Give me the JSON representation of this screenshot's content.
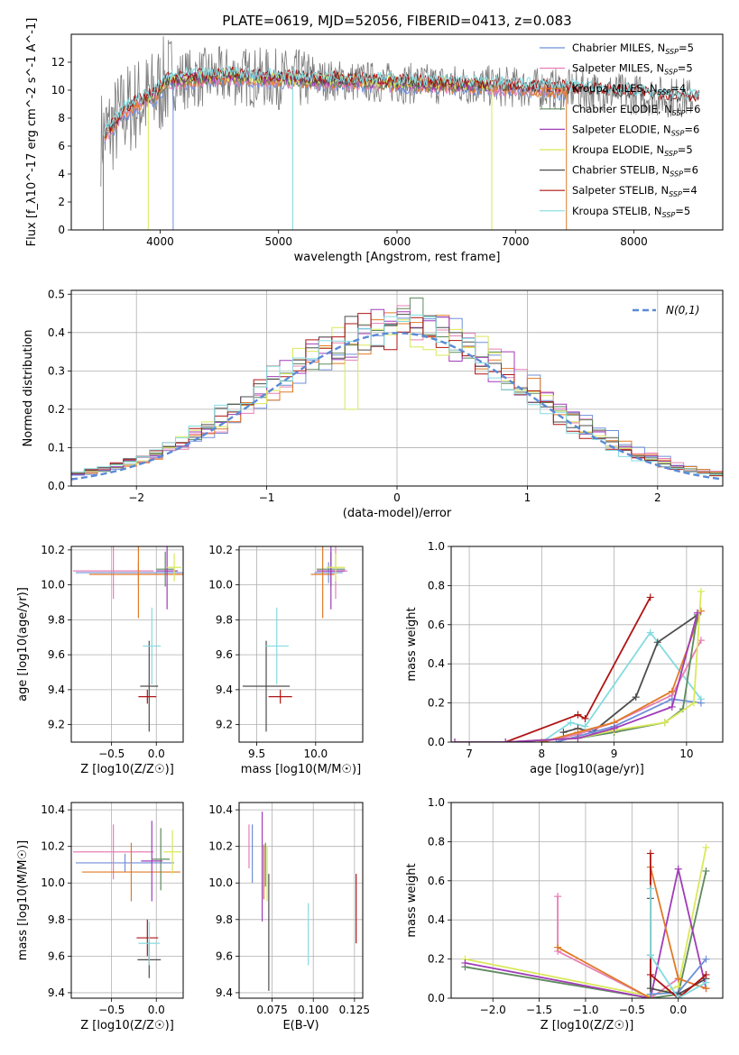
{
  "figure": {
    "title": "PLATE=0619, MJD=52056, FIBERID=0413, z=0.083"
  },
  "colors": {
    "Chabrier MILES": "#6f8fd8",
    "Salpeter MILES": "#e77fb4",
    "Kroupa MILES": "#e07a26",
    "Chabrier ELODIE": "#5e8a5e",
    "Salpeter ELODIE": "#a03cb8",
    "Kroupa ELODIE": "#d9e85a",
    "Chabrier STELIB": "#4d4d4d",
    "Salpeter STELIB": "#b01414",
    "Kroupa STELIB": "#84dbe0",
    "data": "#7a7a7a",
    "normal": "#5b8ad6"
  },
  "chart_data": [
    {
      "id": "spectrum",
      "type": "line",
      "xlabel": "wavelength [Angstrom, rest frame]",
      "ylabel": "Flux [f_λ10^-17 erg cm^-2 s^-1 A^-1]",
      "xlim": [
        3250,
        8750
      ],
      "ylim": [
        0,
        14
      ],
      "xticks": [
        4000,
        5000,
        6000,
        7000,
        8000
      ],
      "yticks": [
        0,
        2,
        4,
        6,
        8,
        10,
        12
      ],
      "legend": {
        "placement": "right",
        "entries": [
          {
            "model": "Chabrier MILES",
            "label": "Chabrier MILES, N",
            "sub": "SSP",
            "suffix": "=5"
          },
          {
            "model": "Salpeter MILES",
            "label": "Salpeter MILES, N",
            "sub": "SSP",
            "suffix": "=5"
          },
          {
            "model": "Kroupa MILES",
            "label": "Kroupa MILES, N",
            "sub": "SSP",
            "suffix": "=4"
          },
          {
            "model": "Chabrier ELODIE",
            "label": "Chabrier ELODIE, N",
            "sub": "SSP",
            "suffix": "=6"
          },
          {
            "model": "Salpeter ELODIE",
            "label": "Salpeter ELODIE, N",
            "sub": "SSP",
            "suffix": "=6"
          },
          {
            "model": "Kroupa ELODIE",
            "label": "Kroupa ELODIE, N",
            "sub": "SSP",
            "suffix": "=5"
          },
          {
            "model": "Chabrier STELIB",
            "label": "Chabrier STELIB, N",
            "sub": "SSP",
            "suffix": "=6"
          },
          {
            "model": "Salpeter STELIB",
            "label": "Salpeter STELIB, N",
            "sub": "SSP",
            "suffix": "=4"
          },
          {
            "model": "Kroupa STELIB",
            "label": "Kroupa STELIB, N",
            "sub": "SSP",
            "suffix": "=5"
          }
        ]
      },
      "continuum": [
        [
          3500,
          6.6
        ],
        [
          3600,
          7.4
        ],
        [
          3700,
          8.5
        ],
        [
          3800,
          9.0
        ],
        [
          3950,
          9.6
        ],
        [
          4050,
          10.6
        ],
        [
          4200,
          10.8
        ],
        [
          4400,
          10.9
        ],
        [
          4600,
          11.0
        ],
        [
          5000,
          10.8
        ],
        [
          5500,
          10.7
        ],
        [
          6000,
          10.5
        ],
        [
          6500,
          10.4
        ],
        [
          7000,
          10.2
        ],
        [
          7500,
          10.0
        ],
        [
          8000,
          9.7
        ],
        [
          8500,
          9.4
        ]
      ],
      "data_range": [
        3500,
        8500
      ],
      "model_ranges": {
        "MILES": [
          3530,
          7430
        ],
        "ELODIE": [
          3900,
          6800
        ],
        "STELIB": [
          3530,
          8550
        ]
      },
      "dropouts": [
        3520,
        3900,
        4110,
        5120,
        6800,
        7430
      ]
    },
    {
      "id": "residuals",
      "type": "histogram",
      "xlabel": "(data-model)/error",
      "ylabel": "Normed distribution",
      "xlim": [
        -2.5,
        2.5
      ],
      "ylim": [
        0,
        0.51
      ],
      "xticks": [
        -2,
        -1,
        0,
        1,
        2
      ],
      "yticks": [
        0.0,
        0.1,
        0.2,
        0.3,
        0.4,
        0.5
      ],
      "bin_width": 0.1,
      "legend": {
        "placement": "top-right",
        "label": "N(0,1)"
      },
      "outliers": [
        {
          "model": "Salpeter ELODIE",
          "x": 0.35,
          "y": 0.44
        },
        {
          "model": "Kroupa ELODIE",
          "x": -0.55,
          "y": 0.36
        },
        {
          "model": "Kroupa ELODIE",
          "x": -0.35,
          "y": 0.2
        },
        {
          "model": "Chabrier ELODIE",
          "x": 0.15,
          "y": 0.49
        },
        {
          "model": "Salpeter MILES",
          "x": 0.05,
          "y": 0.47
        },
        {
          "model": "Kroupa ELODIE",
          "x": 0.65,
          "y": 0.39
        },
        {
          "model": "Chabrier ELODIE",
          "x": -0.25,
          "y": 0.42
        },
        {
          "model": "Salpeter ELODIE",
          "x": 0.85,
          "y": 0.35
        }
      ]
    },
    {
      "id": "age_vs_Z",
      "type": "scatter",
      "xlabel": "Z [log10(Z/Z☉)]",
      "ylabel": "age [log10(age/yr)]",
      "xlim": [
        -0.95,
        0.3
      ],
      "ylim": [
        9.1,
        10.22
      ],
      "xticks": [
        -0.5,
        0.0
      ],
      "yticks": [
        9.2,
        9.4,
        9.6,
        9.8,
        10.0,
        10.2
      ],
      "points": [
        {
          "model": "Chabrier MILES",
          "x": -0.2,
          "y": 10.07,
          "xerr": 0.7,
          "yerr": 0.06
        },
        {
          "model": "Salpeter MILES",
          "x": -0.48,
          "y": 10.08,
          "xerr": 0.45,
          "yerr": 0.16
        },
        {
          "model": "Kroupa MILES",
          "x": -0.2,
          "y": 10.06,
          "xerr": 0.55,
          "yerr": 0.25
        },
        {
          "model": "Chabrier ELODIE",
          "x": 0.1,
          "y": 10.09,
          "xerr": 0.1,
          "yerr": 0.1
        },
        {
          "model": "Salpeter ELODIE",
          "x": 0.12,
          "y": 10.08,
          "xerr": 0.12,
          "yerr": 0.22
        },
        {
          "model": "Kroupa ELODIE",
          "x": 0.2,
          "y": 10.1,
          "xerr": 0.08,
          "yerr": 0.08
        },
        {
          "model": "Chabrier STELIB",
          "x": -0.08,
          "y": 9.42,
          "xerr": 0.1,
          "yerr": 0.26
        },
        {
          "model": "Salpeter STELIB",
          "x": -0.1,
          "y": 9.36,
          "xerr": 0.1,
          "yerr": 0.04
        },
        {
          "model": "Kroupa STELIB",
          "x": -0.05,
          "y": 9.65,
          "xerr": 0.1,
          "yerr": 0.22
        }
      ]
    },
    {
      "id": "age_vs_mass",
      "type": "scatter",
      "xlabel": "mass [log10(M/M☉)]",
      "ylabel": "",
      "xlim": [
        9.35,
        10.4
      ],
      "ylim": [
        9.1,
        10.22
      ],
      "xticks": [
        9.5,
        10.0
      ],
      "yticks": [
        9.2,
        9.4,
        9.6,
        9.8,
        10.0,
        10.2
      ],
      "points": [
        {
          "model": "Chabrier MILES",
          "x": 10.11,
          "y": 10.07,
          "xerr": 0.12,
          "yerr": 0.06
        },
        {
          "model": "Salpeter MILES",
          "x": 10.17,
          "y": 10.08,
          "xerr": 0.1,
          "yerr": 0.16
        },
        {
          "model": "Kroupa MILES",
          "x": 10.06,
          "y": 10.06,
          "xerr": 0.1,
          "yerr": 0.25
        },
        {
          "model": "Chabrier ELODIE",
          "x": 10.13,
          "y": 10.09,
          "xerr": 0.12,
          "yerr": 0.1
        },
        {
          "model": "Salpeter ELODIE",
          "x": 10.13,
          "y": 10.08,
          "xerr": 0.12,
          "yerr": 0.22
        },
        {
          "model": "Kroupa ELODIE",
          "x": 10.17,
          "y": 10.1,
          "xerr": 0.08,
          "yerr": 0.08
        },
        {
          "model": "Chabrier STELIB",
          "x": 9.58,
          "y": 9.42,
          "xerr": 0.2,
          "yerr": 0.26
        },
        {
          "model": "Salpeter STELIB",
          "x": 9.7,
          "y": 9.36,
          "xerr": 0.1,
          "yerr": 0.04
        },
        {
          "model": "Kroupa STELIB",
          "x": 9.67,
          "y": 9.65,
          "xerr": 0.1,
          "yerr": 0.22
        }
      ]
    },
    {
      "id": "weight_vs_age",
      "type": "line",
      "xlabel": "age [log10(age/yr)]",
      "ylabel": "mass weight",
      "xlim": [
        6.75,
        10.5
      ],
      "ylim": [
        0,
        1.0
      ],
      "xticks": [
        7,
        8,
        9,
        10
      ],
      "yticks": [
        0.0,
        0.2,
        0.4,
        0.6,
        0.8,
        1.0
      ],
      "series": [
        {
          "model": "Salpeter STELIB",
          "x": [
            7.5,
            8.5,
            8.6,
            9.5
          ],
          "y": [
            0.0,
            0.14,
            0.12,
            0.74
          ]
        },
        {
          "model": "Kroupa STELIB",
          "x": [
            8.0,
            8.4,
            8.6,
            9.5,
            10.2
          ],
          "y": [
            0.0,
            0.1,
            0.08,
            0.56,
            0.22
          ]
        },
        {
          "model": "Chabrier STELIB",
          "x": [
            8.3,
            8.5,
            8.7,
            9.3,
            9.6,
            10.15
          ],
          "y": [
            0.05,
            0.07,
            0.05,
            0.23,
            0.51,
            0.65
          ]
        },
        {
          "model": "Salpeter MILES",
          "x": [
            8.0,
            8.5,
            9.0,
            9.8,
            10.2
          ],
          "y": [
            0.0,
            0.04,
            0.1,
            0.24,
            0.52
          ]
        },
        {
          "model": "Kroupa MILES",
          "x": [
            8.0,
            8.5,
            9.0,
            9.8,
            10.2
          ],
          "y": [
            0.0,
            0.05,
            0.1,
            0.26,
            0.67
          ]
        },
        {
          "model": "Chabrier MILES",
          "x": [
            8.2,
            8.7,
            9.0,
            9.8,
            10.2
          ],
          "y": [
            0.0,
            0.05,
            0.08,
            0.22,
            0.2
          ]
        },
        {
          "model": "Chabrier ELODIE",
          "x": [
            6.8,
            7.5,
            8.5,
            9.0,
            9.7,
            9.95,
            10.15
          ],
          "y": [
            0.0,
            0.0,
            0.02,
            0.05,
            0.1,
            0.17,
            0.65
          ]
        },
        {
          "model": "Kroupa ELODIE",
          "x": [
            6.8,
            7.5,
            8.5,
            9.0,
            9.7,
            10.1,
            10.2
          ],
          "y": [
            0.0,
            0.0,
            0.02,
            0.06,
            0.1,
            0.2,
            0.77
          ]
        },
        {
          "model": "Salpeter ELODIE",
          "x": [
            6.8,
            7.5,
            8.5,
            9.0,
            9.8,
            10.15
          ],
          "y": [
            0.0,
            0.0,
            0.02,
            0.07,
            0.18,
            0.66
          ]
        }
      ]
    },
    {
      "id": "mass_vs_Z",
      "type": "scatter",
      "xlabel": "Z [log10(Z/Z☉)]",
      "ylabel": "mass [log10(M/M☉)]",
      "xlim": [
        -0.95,
        0.3
      ],
      "ylim": [
        9.37,
        10.44
      ],
      "xticks": [
        -0.5,
        0.0
      ],
      "yticks": [
        9.4,
        9.6,
        9.8,
        10.0,
        10.2,
        10.4
      ],
      "points": [
        {
          "model": "Chabrier MILES",
          "x": -0.35,
          "y": 10.11,
          "xerr": 0.55,
          "yerr": 0.05
        },
        {
          "model": "Salpeter MILES",
          "x": -0.48,
          "y": 10.17,
          "xerr": 0.45,
          "yerr": 0.15
        },
        {
          "model": "Kroupa MILES",
          "x": -0.28,
          "y": 10.06,
          "xerr": 0.55,
          "yerr": 0.16
        },
        {
          "model": "Chabrier ELODIE",
          "x": 0.05,
          "y": 10.13,
          "xerr": 0.1,
          "yerr": 0.17
        },
        {
          "model": "Salpeter ELODIE",
          "x": -0.05,
          "y": 10.12,
          "xerr": 0.12,
          "yerr": 0.22
        },
        {
          "model": "Kroupa ELODIE",
          "x": 0.18,
          "y": 10.17,
          "xerr": 0.1,
          "yerr": 0.12
        },
        {
          "model": "Chabrier STELIB",
          "x": -0.08,
          "y": 9.58,
          "xerr": 0.13,
          "yerr": 0.1
        },
        {
          "model": "Salpeter STELIB",
          "x": -0.1,
          "y": 9.7,
          "xerr": 0.12,
          "yerr": 0.1
        },
        {
          "model": "Kroupa STELIB",
          "x": -0.08,
          "y": 9.67,
          "xerr": 0.12,
          "yerr": 0.12
        }
      ]
    },
    {
      "id": "mass_vs_EBV",
      "type": "scatter",
      "xlabel": "E(B-V)",
      "ylabel": "",
      "xlim": [
        0.055,
        0.13
      ],
      "ylim": [
        9.37,
        10.44
      ],
      "xticks": [
        0.075,
        0.1,
        0.125
      ],
      "yticks": [
        9.4,
        9.6,
        9.8,
        10.0,
        10.2,
        10.4
      ],
      "points": [
        {
          "model": "Chabrier MILES",
          "x": 0.063,
          "y": 10.16,
          "yerr": 0.16
        },
        {
          "model": "Salpeter MILES",
          "x": 0.061,
          "y": 10.2,
          "yerr": 0.12
        },
        {
          "model": "Kroupa MILES",
          "x": 0.07,
          "y": 10.06,
          "yerr": 0.15
        },
        {
          "model": "Chabrier ELODIE",
          "x": 0.071,
          "y": 10.1,
          "yerr": 0.12
        },
        {
          "model": "Salpeter ELODIE",
          "x": 0.069,
          "y": 10.09,
          "yerr": 0.3
        },
        {
          "model": "Kroupa ELODIE",
          "x": 0.072,
          "y": 10.05,
          "yerr": 0.15
        },
        {
          "model": "Chabrier STELIB",
          "x": 0.073,
          "y": 9.73,
          "yerr": 0.32
        },
        {
          "model": "Salpeter STELIB",
          "x": 0.126,
          "y": 9.86,
          "yerr": 0.19
        },
        {
          "model": "Kroupa STELIB",
          "x": 0.097,
          "y": 9.72,
          "yerr": 0.17
        }
      ]
    },
    {
      "id": "weight_vs_Z",
      "type": "line",
      "xlabel": "Z [log10(Z/Z☉)]",
      "ylabel": "mass weight",
      "xlim": [
        -2.45,
        0.48
      ],
      "ylim": [
        0,
        1.0
      ],
      "xticks": [
        -2.0,
        -1.5,
        -1.0,
        -0.5,
        0.0
      ],
      "yticks": [
        0.0,
        0.2,
        0.4,
        0.6,
        0.8,
        1.0
      ],
      "series": [
        {
          "model": "Chabrier ELODIE",
          "x": [
            -2.3,
            -0.3,
            0.0,
            0.3
          ],
          "y": [
            0.16,
            0.0,
            0.02,
            0.65
          ]
        },
        {
          "model": "Kroupa ELODIE",
          "x": [
            -2.3,
            -0.3,
            0.0,
            0.3
          ],
          "y": [
            0.2,
            0.01,
            0.06,
            0.77
          ]
        },
        {
          "model": "Salpeter ELODIE",
          "x": [
            -2.3,
            -0.3,
            0.0,
            0.3
          ],
          "y": [
            0.18,
            0.0,
            0.66,
            0.05
          ]
        },
        {
          "model": "Salpeter MILES",
          "x": [
            -1.3,
            -1.3,
            -0.3,
            0.0,
            0.3
          ],
          "y": [
            0.52,
            0.24,
            0.0,
            0.1,
            0.05
          ]
        },
        {
          "model": "Kroupa MILES",
          "x": [
            -1.3,
            -0.3,
            -0.3,
            0.0,
            0.3
          ],
          "y": [
            0.26,
            0.0,
            0.67,
            0.1,
            0.05
          ]
        },
        {
          "model": "Chabrier MILES",
          "x": [
            -0.3,
            -0.3,
            0.0,
            0.3
          ],
          "y": [
            0.22,
            0.02,
            0.03,
            0.2
          ]
        },
        {
          "model": "Chabrier STELIB",
          "x": [
            -0.3,
            -0.3,
            0.0,
            0.3
          ],
          "y": [
            0.51,
            0.05,
            0.02,
            0.1
          ]
        },
        {
          "model": "Salpeter STELIB",
          "x": [
            -0.3,
            -0.3,
            0.0,
            0.3
          ],
          "y": [
            0.74,
            0.12,
            0.0,
            0.12
          ]
        },
        {
          "model": "Kroupa STELIB",
          "x": [
            -0.3,
            -0.3,
            0.0,
            0.3
          ],
          "y": [
            0.56,
            0.22,
            0.0,
            0.08
          ]
        }
      ]
    }
  ]
}
